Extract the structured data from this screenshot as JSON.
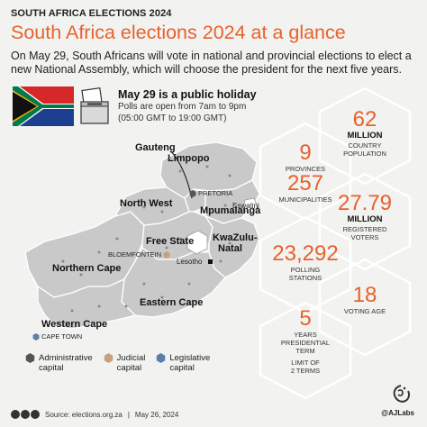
{
  "header": {
    "kicker": "SOUTH AFRICA ELECTIONS 2024",
    "title": "South Africa elections 2024 at a glance",
    "intro": "On May 29, South Africans will vote in national and provincial elections to elect a new National Assembly, which will choose the president for the next five years."
  },
  "holiday": {
    "heading": "May 29 is a public holiday",
    "line1": "Polls are open from 7am to 9pm",
    "line2": "(05:00 GMT to 19:00 GMT)"
  },
  "map": {
    "provinces": {
      "gauteng": "Gauteng",
      "limpopo": "Limpopo",
      "north_west": "North West",
      "mpumalanga": "Mpumalanga",
      "free_state": "Free State",
      "kwazulu_1": "KwaZulu-",
      "kwazulu_2": "Natal",
      "northern_cape": "Northern Cape",
      "eastern_cape": "Eastern Cape",
      "western_cape": "Western Cape"
    },
    "places": {
      "pretoria": "PRETORIA",
      "bloemfontein": "BLOEMFONTEIN",
      "cape_town": "CAPE TOWN",
      "eswatini": "Eswatini",
      "lesotho": "Lesotho"
    }
  },
  "legend": {
    "administrative_1": "Administrative",
    "administrative_2": "capital",
    "judicial_1": "Judicial",
    "judicial_2": "capital",
    "legislative_1": "Legislative",
    "legislative_2": "capital"
  },
  "stats": {
    "population": {
      "value": "62",
      "unit": "MILLION",
      "label1": "COUNTRY",
      "label2": "POPULATION"
    },
    "provinces": {
      "value": "9",
      "label": "PROVINCES"
    },
    "municipalities": {
      "value": "257",
      "label": "MUNICIPALITIES"
    },
    "voters": {
      "value": "27.79",
      "unit": "MILLION",
      "label1": "REGISTERED",
      "label2": "VOTERS"
    },
    "stations": {
      "value": "23,292",
      "label1": "POLLING",
      "label2": "STATIONS"
    },
    "voting_age": {
      "value": "18",
      "label": "VOTING AGE"
    },
    "term": {
      "value": "5",
      "label1": "YEARS",
      "label2": "PRESIDENTIAL",
      "label3": "TERM",
      "label4": "LIMIT OF",
      "label5": "2 TERMS"
    }
  },
  "footer": {
    "source": "Source: elections.org.za",
    "sep": "|",
    "date": "May 26, 2024",
    "credit": "@AJLabs"
  },
  "colors": {
    "accent": "#e8612c",
    "administrative": "#555555",
    "judicial": "#c8a07a",
    "legislative": "#5a7fa8"
  }
}
